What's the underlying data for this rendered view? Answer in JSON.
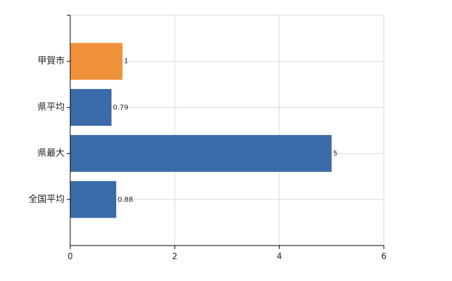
{
  "chart_data": {
    "type": "hbar",
    "categories": [
      "甲賀市",
      "県平均",
      "県最大",
      "全国平均"
    ],
    "values": [
      1,
      0.79,
      5,
      0.88
    ],
    "colors": [
      "#f0923a",
      "#3a6aa8",
      "#3a6aa8",
      "#3a6aa8"
    ],
    "xlim": [
      0,
      6
    ],
    "xticks": [
      0,
      2,
      4,
      6
    ],
    "grid": true
  }
}
